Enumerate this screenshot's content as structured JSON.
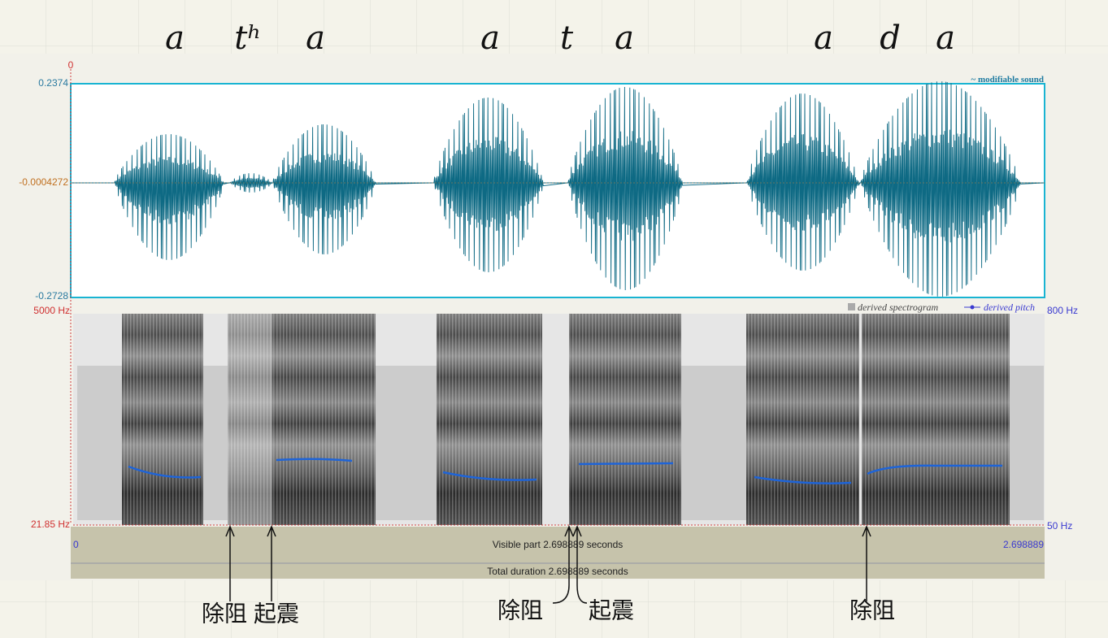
{
  "handwritten_labels": [
    "a",
    "tʰ",
    "a",
    "a",
    "t",
    "a",
    "a",
    "d",
    "a"
  ],
  "sound_panel": {
    "cursor_time": "0",
    "top_value": "0.2374",
    "middle_value": "-0.0004272",
    "bottom_value": "-0.2728",
    "title": "~ modifiable sound"
  },
  "spectrogram_panel": {
    "top_frequency": "5000 Hz",
    "bottom_frequency": "21.85 Hz",
    "spectrogram_legend": "derived spectrogram",
    "pitch_legend": "derived pitch",
    "pitch_top": "800 Hz",
    "pitch_bottom": "50 Hz"
  },
  "time_bar": {
    "start": "0",
    "visible_part": "Visible part 2.698889 seconds",
    "end": "2.698889",
    "total_duration": "Total duration 2.698889 seconds"
  },
  "annotations": [
    "除阻",
    "起震",
    "除阻",
    "起震",
    "除阻"
  ]
}
